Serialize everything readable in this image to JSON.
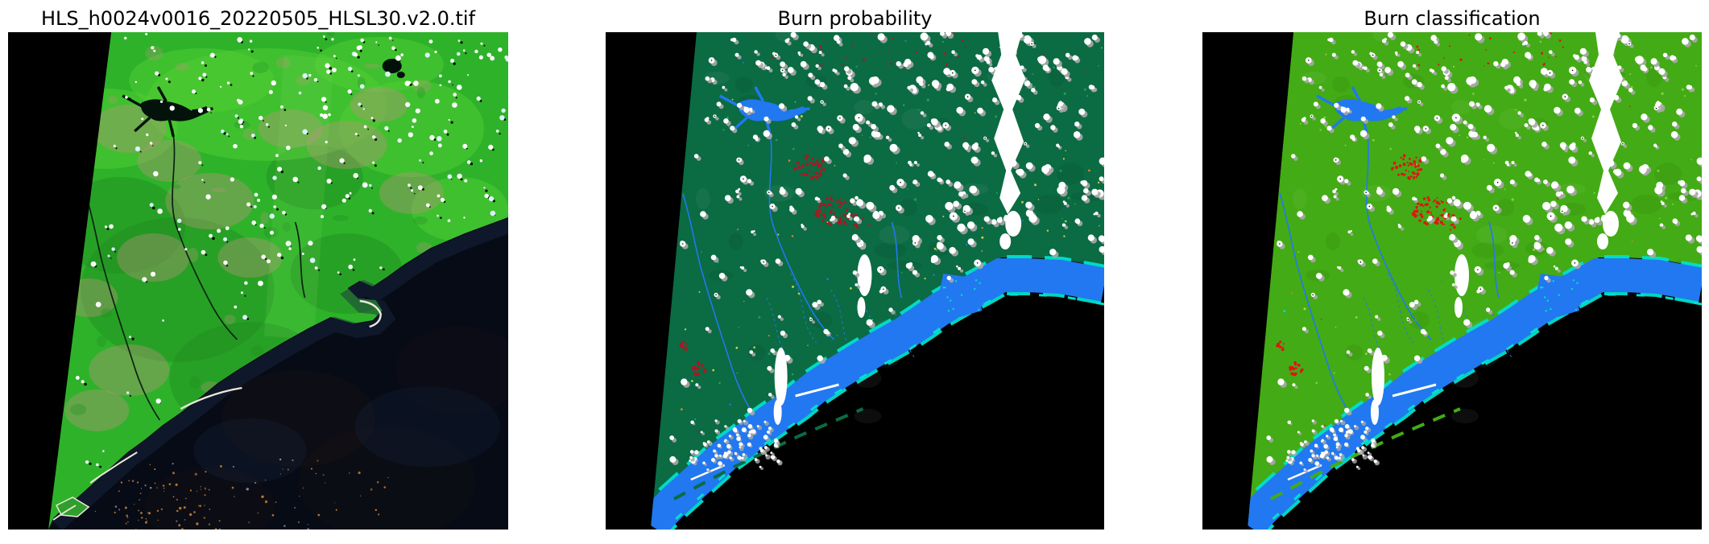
{
  "figure": {
    "kind": "satellite-burn-mapping-figure",
    "background": "#ffffff",
    "panel_count": 3
  },
  "panels": [
    {
      "id": "hls-tile",
      "title": "HLS_h0024v0016_20220505_HLSL30.v2.0.tif",
      "kind": "false-color-composite"
    },
    {
      "id": "burn-probability",
      "title": "Burn probability",
      "kind": "classification-map"
    },
    {
      "id": "burn-classification",
      "title": "Burn classification",
      "kind": "classification-map"
    }
  ],
  "colors": {
    "nodata_black": "#000000",
    "p1_land_green": "#2eb22a",
    "p1_land_light": "#55d035",
    "p1_land_dark": "#1f8c20",
    "p1_soil_tan": "#b69478",
    "p1_sea_dark": "#070b16",
    "p1_sediment_orange": "#cc8433",
    "p1_spit_sand": "#ece8d8",
    "p2_land_green": "#0b6b43",
    "p2_alt_green": "#2fa05c",
    "p3_land_green": "#43ab15",
    "p3_alt_green": "#8fd84a",
    "water_blue": "#2278f0",
    "shallow_cyan": "#00e0cc",
    "cloud_white": "#ffffff",
    "cloud_gray": "#a8a8a8",
    "burn_probability_red": "#b01520",
    "burn_class_red": "#e01414",
    "noise_yellow": "#c9cf45",
    "noise_orange": "#e08030"
  }
}
